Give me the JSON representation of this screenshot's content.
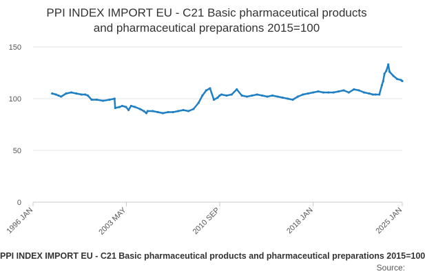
{
  "chart_data": {
    "type": "line",
    "title_lines": [
      "PPI INDEX IMPORT EU - C21 Basic pharmaceutical products",
      "and pharmaceutical preparations 2015=100"
    ],
    "footer_title": "PPI INDEX IMPORT EU - C21 Basic pharmaceutical products and pharmaceutical preparations 2015=100",
    "source_label": "Source:",
    "ylim": [
      0,
      150
    ],
    "yticks": [
      0,
      50,
      100,
      150
    ],
    "xlim": [
      1996.0,
      2025.0
    ],
    "xticks": [
      {
        "x": 1996.0,
        "label": "1996 JAN"
      },
      {
        "x": 2003.33,
        "label": "2003 MAY"
      },
      {
        "x": 2010.67,
        "label": "2010 SEP"
      },
      {
        "x": 2018.0,
        "label": "2018 JAN"
      },
      {
        "x": 2025.0,
        "label": "2025 JAN"
      }
    ],
    "line_color": "#1f7fc4",
    "grid": true,
    "series": [
      {
        "x": [
          1997.5,
          1997.8,
          1998.0,
          1998.2,
          1998.6,
          1999.0,
          1999.4,
          1999.8,
          2000.1,
          2000.3,
          2000.6,
          2001.0,
          2001.5,
          2002.0,
          2002.4,
          2002.45,
          2002.8,
          2003.0,
          2003.3,
          2003.5,
          2003.7,
          2004.0,
          2004.4,
          2004.7,
          2004.9,
          2005.0,
          2005.4,
          2005.8,
          2006.2,
          2006.6,
          2007.0,
          2007.4,
          2007.8,
          2008.2,
          2008.6,
          2009.0,
          2009.3,
          2009.6,
          2009.9,
          2010.2,
          2010.5,
          2010.65,
          2010.8,
          2011.2,
          2011.6,
          2012.0,
          2012.4,
          2012.8,
          2013.2,
          2013.6,
          2014.0,
          2014.4,
          2014.8,
          2015.2,
          2015.6,
          2016.0,
          2016.4,
          2016.8,
          2017.2,
          2017.6,
          2018.0,
          2018.4,
          2018.8,
          2019.2,
          2019.6,
          2020.0,
          2020.4,
          2020.8,
          2021.2,
          2021.6,
          2022.0,
          2022.4,
          2022.7,
          2022.9,
          2023.2,
          2023.4,
          2023.5,
          2023.6,
          2023.75,
          2023.9,
          2024.0,
          2024.3,
          2024.6,
          2024.9,
          2025.0
        ],
        "y": [
          105,
          104,
          103,
          102,
          105,
          106,
          105,
          104,
          104,
          103,
          99,
          99,
          98,
          99,
          100,
          91,
          92,
          93,
          92,
          89,
          93,
          92,
          90,
          88,
          86,
          88,
          88,
          87,
          86,
          87,
          87,
          88,
          89,
          88,
          90,
          96,
          103,
          108,
          110,
          99,
          101,
          103,
          104,
          103,
          104,
          109,
          103,
          102,
          103,
          104,
          103,
          102,
          103,
          102,
          101,
          100,
          99,
          102,
          104,
          105,
          106,
          107,
          106,
          106,
          106,
          107,
          108,
          106,
          109,
          108,
          106,
          105,
          104,
          104,
          104,
          113,
          117,
          124,
          127,
          133,
          126,
          122,
          119,
          118,
          117
        ]
      }
    ]
  }
}
